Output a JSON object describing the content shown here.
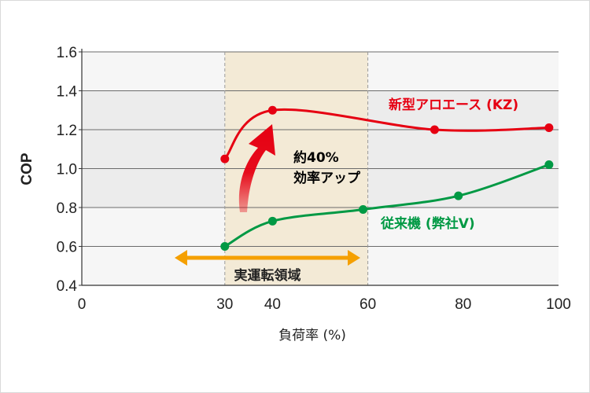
{
  "chart_data": {
    "type": "line",
    "xlabel": "負荷率 (%)",
    "ylabel": "COP",
    "xlim": [
      0,
      100
    ],
    "ylim": [
      0.4,
      1.6
    ],
    "x_ticks": [
      0,
      30,
      40,
      60,
      80,
      100
    ],
    "y_ticks": [
      0.4,
      0.6,
      0.8,
      1.0,
      1.2,
      1.4,
      1.6
    ],
    "grid": true,
    "series": [
      {
        "name": "新型アロエース (KZ)",
        "color": "#e60012",
        "points": [
          [
            30,
            1.05
          ],
          [
            40,
            1.3
          ],
          [
            74,
            1.2
          ],
          [
            98,
            1.21
          ]
        ]
      },
      {
        "name": "従来機 (弊社V)",
        "color": "#009944",
        "points": [
          [
            30,
            0.6
          ],
          [
            40,
            0.73
          ],
          [
            59,
            0.79
          ],
          [
            79,
            0.86
          ],
          [
            98,
            1.02
          ]
        ]
      }
    ],
    "annotations": {
      "operating_range": {
        "label": "実運転領域",
        "x_start": 30,
        "x_end": 60
      },
      "improvement": {
        "line1": "約40%",
        "line2": "効率アップ"
      }
    }
  },
  "colors": {
    "red": "#e60012",
    "green": "#009944",
    "arrow_orange": "#f5a000",
    "zone_fill": "#f3ead6",
    "band_dark": "#ececec",
    "band_light": "#f6f6f6"
  }
}
